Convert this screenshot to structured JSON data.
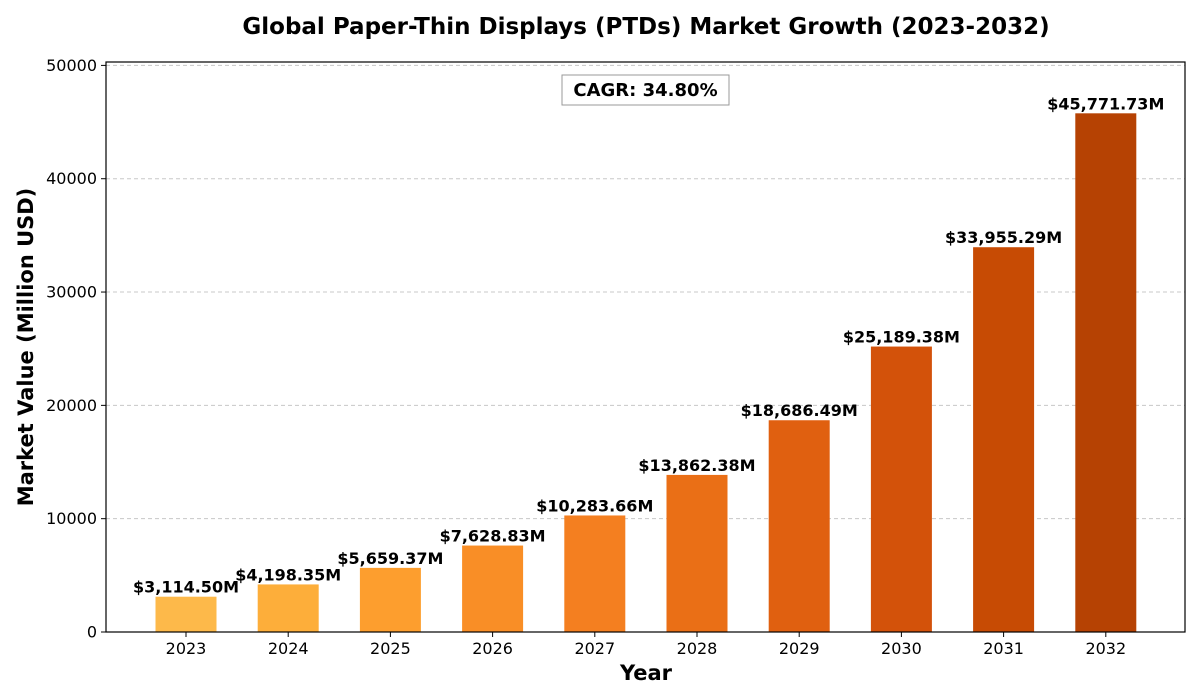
{
  "chart_data": {
    "type": "bar",
    "title": "Global Paper-Thin Displays (PTDs) Market Growth (2023-2032)",
    "xlabel": "Year",
    "ylabel": "Market Value (Million USD)",
    "categories": [
      "2023",
      "2024",
      "2025",
      "2026",
      "2027",
      "2028",
      "2029",
      "2030",
      "2031",
      "2032"
    ],
    "values": [
      3114.5,
      4198.35,
      5659.37,
      7628.83,
      10283.66,
      13862.38,
      18686.49,
      25189.38,
      33955.29,
      45771.73
    ],
    "data_labels": [
      "$3,114.50M",
      "$4,198.35M",
      "$5,659.37M",
      "$7,628.83M",
      "$10,283.66M",
      "$13,862.38M",
      "$18,686.49M",
      "$25,189.38M",
      "$33,955.29M",
      "$45,771.73M"
    ],
    "bar_colors": [
      "#fdb94a",
      "#fdae3a",
      "#fd9e2e",
      "#f98e26",
      "#f47f20",
      "#ea6f16",
      "#e06010",
      "#d3520a",
      "#c74b04",
      "#b64203"
    ],
    "ylim": [
      0,
      50000
    ],
    "yticks": [
      0,
      10000,
      20000,
      30000,
      40000,
      50000
    ],
    "ytick_labels": [
      "0",
      "10000",
      "20000",
      "30000",
      "40000",
      "50000"
    ],
    "grid": "y-dashed",
    "annotation": "CAGR: 34.80%"
  }
}
